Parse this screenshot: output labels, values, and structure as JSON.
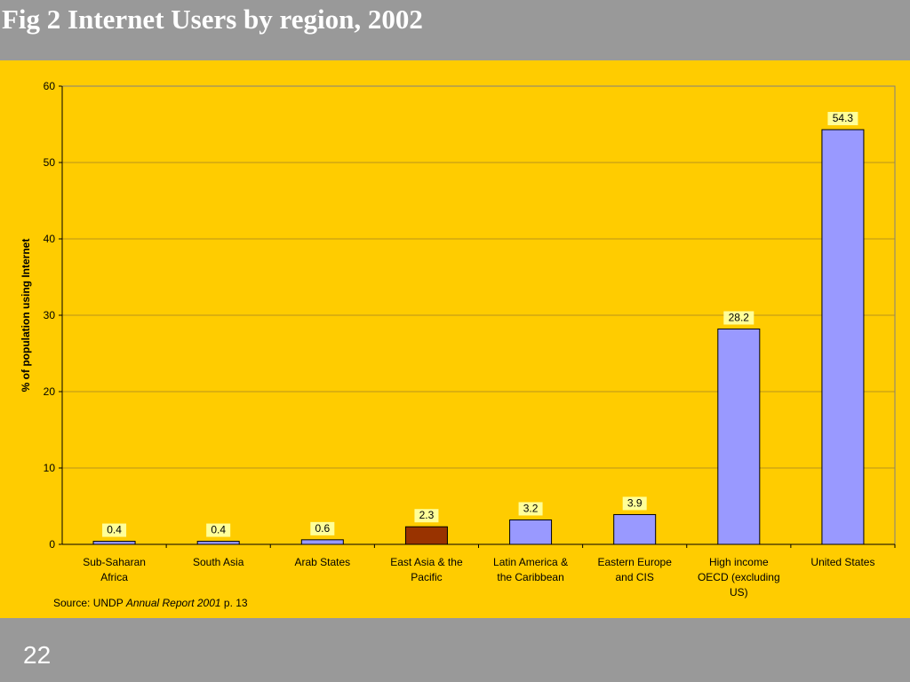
{
  "slide": {
    "title": "Fig 2 Internet Users by region, 2002",
    "page_number": "22",
    "source_prefix": "Source: UNDP ",
    "source_italic": "Annual Report 2001",
    "source_suffix": " p. 13"
  },
  "colors": {
    "background": "#ffcc00",
    "frame": "#999999",
    "bar": "#9999ff",
    "highlight_bar": "#993300",
    "label_bg": "#ffff99"
  },
  "chart_data": {
    "type": "bar",
    "categories": [
      [
        "Sub-Saharan",
        "Africa"
      ],
      [
        "South Asia"
      ],
      [
        "Arab States"
      ],
      [
        "East Asia & the",
        "Pacific"
      ],
      [
        "Latin America &",
        "the Caribbean"
      ],
      [
        "Eastern Europe",
        "and CIS"
      ],
      [
        "High income",
        "OECD (excluding",
        "US)"
      ],
      [
        "United States"
      ]
    ],
    "values": [
      0.4,
      0.4,
      0.6,
      2.3,
      3.2,
      3.9,
      28.2,
      54.3
    ],
    "value_labels": [
      "0.4",
      "0.4",
      "0.6",
      "2.3",
      "3.2",
      "3.9",
      "28.2",
      "54.3"
    ],
    "highlight_index": 3,
    "ylabel": "% of population using Internet",
    "ylim": [
      0,
      60
    ],
    "yticks": [
      0,
      10,
      20,
      30,
      40,
      50,
      60
    ],
    "grid": true,
    "legend": "none"
  }
}
